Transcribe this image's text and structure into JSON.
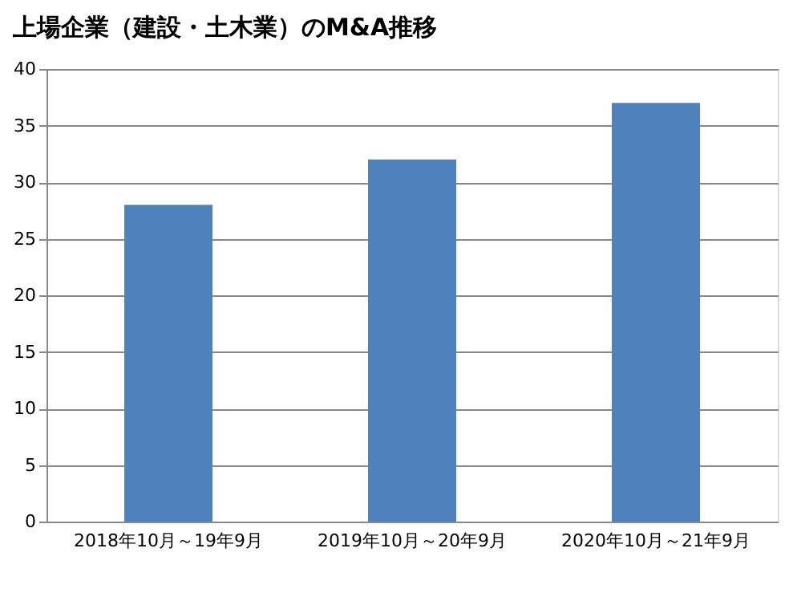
{
  "chart_data": {
    "type": "bar",
    "title": "上場企業（建設・土木業）のM&A推移",
    "categories": [
      "2018年10月～19年9月",
      "2019年10月～20年9月",
      "2020年10月～21年9月"
    ],
    "values": [
      28,
      32,
      37
    ],
    "color": "#4f81bd",
    "ylim": [
      0,
      40
    ],
    "yticks": [
      0,
      5,
      10,
      15,
      20,
      25,
      30,
      35,
      40
    ],
    "grid": "y"
  }
}
